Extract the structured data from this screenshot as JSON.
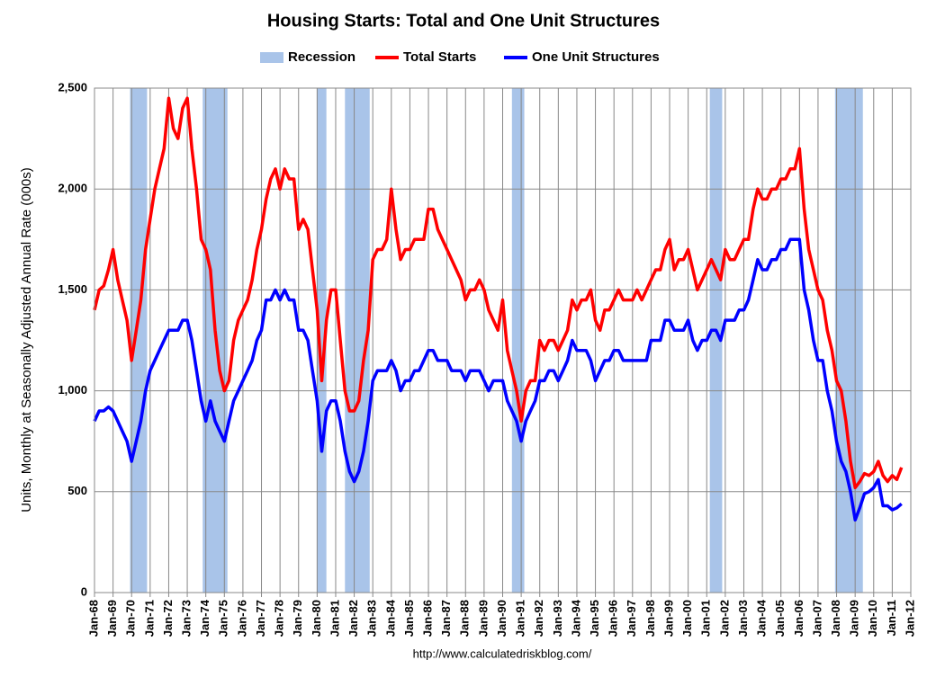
{
  "chart_data": {
    "type": "line",
    "title": "Housing Starts: Total and One Unit Structures",
    "y_label": "Units, Monthly at Seasonally Adjusted Annual Rate (000s)",
    "source": "http://www.calculatedriskblog.com/",
    "grid": true,
    "legend": "top",
    "recessions": {
      "name": "Recession",
      "color": "#a9c4e9",
      "ranges": [
        [
          "1969-12",
          "1970-11"
        ],
        [
          "1973-11",
          "1975-03"
        ],
        [
          "1980-01",
          "1980-07"
        ],
        [
          "1981-07",
          "1982-11"
        ],
        [
          "1990-07",
          "1991-03"
        ],
        [
          "2001-03",
          "2001-11"
        ],
        [
          "2007-12",
          "2009-06"
        ]
      ]
    },
    "x": [
      "1968-01",
      "1968-04",
      "1968-07",
      "1968-10",
      "1969-01",
      "1969-04",
      "1969-07",
      "1969-10",
      "1970-01",
      "1970-04",
      "1970-07",
      "1970-10",
      "1971-01",
      "1971-04",
      "1971-07",
      "1971-10",
      "1972-01",
      "1972-04",
      "1972-07",
      "1972-10",
      "1973-01",
      "1973-04",
      "1973-07",
      "1973-10",
      "1974-01",
      "1974-04",
      "1974-07",
      "1974-10",
      "1975-01",
      "1975-04",
      "1975-07",
      "1975-10",
      "1976-01",
      "1976-04",
      "1976-07",
      "1976-10",
      "1977-01",
      "1977-04",
      "1977-07",
      "1977-10",
      "1978-01",
      "1978-04",
      "1978-07",
      "1978-10",
      "1979-01",
      "1979-04",
      "1979-07",
      "1979-10",
      "1980-01",
      "1980-04",
      "1980-07",
      "1980-10",
      "1981-01",
      "1981-04",
      "1981-07",
      "1981-10",
      "1982-01",
      "1982-04",
      "1982-07",
      "1982-10",
      "1983-01",
      "1983-04",
      "1983-07",
      "1983-10",
      "1984-01",
      "1984-04",
      "1984-07",
      "1984-10",
      "1985-01",
      "1985-04",
      "1985-07",
      "1985-10",
      "1986-01",
      "1986-04",
      "1986-07",
      "1986-10",
      "1987-01",
      "1987-04",
      "1987-07",
      "1987-10",
      "1988-01",
      "1988-04",
      "1988-07",
      "1988-10",
      "1989-01",
      "1989-04",
      "1989-07",
      "1989-10",
      "1990-01",
      "1990-04",
      "1990-07",
      "1990-10",
      "1991-01",
      "1991-04",
      "1991-07",
      "1991-10",
      "1992-01",
      "1992-04",
      "1992-07",
      "1992-10",
      "1993-01",
      "1993-04",
      "1993-07",
      "1993-10",
      "1994-01",
      "1994-04",
      "1994-07",
      "1994-10",
      "1995-01",
      "1995-04",
      "1995-07",
      "1995-10",
      "1996-01",
      "1996-04",
      "1996-07",
      "1996-10",
      "1997-01",
      "1997-04",
      "1997-07",
      "1997-10",
      "1998-01",
      "1998-04",
      "1998-07",
      "1998-10",
      "1999-01",
      "1999-04",
      "1999-07",
      "1999-10",
      "2000-01",
      "2000-04",
      "2000-07",
      "2000-10",
      "2001-01",
      "2001-04",
      "2001-07",
      "2001-10",
      "2002-01",
      "2002-04",
      "2002-07",
      "2002-10",
      "2003-01",
      "2003-04",
      "2003-07",
      "2003-10",
      "2004-01",
      "2004-04",
      "2004-07",
      "2004-10",
      "2005-01",
      "2005-04",
      "2005-07",
      "2005-10",
      "2006-01",
      "2006-04",
      "2006-07",
      "2006-10",
      "2007-01",
      "2007-04",
      "2007-07",
      "2007-10",
      "2008-01",
      "2008-04",
      "2008-07",
      "2008-10",
      "2009-01",
      "2009-04",
      "2009-07",
      "2009-10",
      "2010-01",
      "2010-04",
      "2010-07",
      "2010-10",
      "2011-01",
      "2011-04",
      "2011-07"
    ],
    "series": [
      {
        "name": "Total Starts",
        "color": "#ff0000",
        "values": [
          1400,
          1500,
          1520,
          1600,
          1700,
          1550,
          1450,
          1350,
          1150,
          1300,
          1450,
          1700,
          1850,
          2000,
          2100,
          2200,
          2450,
          2300,
          2250,
          2400,
          2450,
          2200,
          2000,
          1750,
          1700,
          1600,
          1300,
          1100,
          1000,
          1050,
          1250,
          1350,
          1400,
          1450,
          1550,
          1700,
          1800,
          1950,
          2050,
          2100,
          2000,
          2100,
          2050,
          2050,
          1800,
          1850,
          1800,
          1600,
          1400,
          1050,
          1350,
          1500,
          1500,
          1250,
          1000,
          900,
          900,
          950,
          1150,
          1300,
          1650,
          1700,
          1700,
          1750,
          2000,
          1800,
          1650,
          1700,
          1700,
          1750,
          1750,
          1750,
          1900,
          1900,
          1800,
          1750,
          1700,
          1650,
          1600,
          1550,
          1450,
          1500,
          1500,
          1550,
          1500,
          1400,
          1350,
          1300,
          1450,
          1200,
          1100,
          1000,
          850,
          1000,
          1050,
          1050,
          1250,
          1200,
          1250,
          1250,
          1200,
          1250,
          1300,
          1450,
          1400,
          1450,
          1450,
          1500,
          1350,
          1300,
          1400,
          1400,
          1450,
          1500,
          1450,
          1450,
          1450,
          1500,
          1450,
          1500,
          1550,
          1600,
          1600,
          1700,
          1750,
          1600,
          1650,
          1650,
          1700,
          1600,
          1500,
          1550,
          1600,
          1650,
          1600,
          1550,
          1700,
          1650,
          1650,
          1700,
          1750,
          1750,
          1900,
          2000,
          1950,
          1950,
          2000,
          2000,
          2050,
          2050,
          2100,
          2100,
          2200,
          1900,
          1700,
          1600,
          1500,
          1450,
          1300,
          1200,
          1050,
          1000,
          850,
          650,
          520,
          550,
          590,
          580,
          600,
          650,
          580,
          550,
          580,
          560,
          620
        ]
      },
      {
        "name": "One Unit Structures",
        "color": "#0000ff",
        "values": [
          850,
          900,
          900,
          920,
          900,
          850,
          800,
          750,
          650,
          750,
          850,
          1000,
          1100,
          1150,
          1200,
          1250,
          1300,
          1300,
          1300,
          1350,
          1350,
          1250,
          1100,
          950,
          850,
          950,
          850,
          800,
          750,
          850,
          950,
          1000,
          1050,
          1100,
          1150,
          1250,
          1300,
          1450,
          1450,
          1500,
          1450,
          1500,
          1450,
          1450,
          1300,
          1300,
          1250,
          1100,
          950,
          700,
          900,
          950,
          950,
          850,
          700,
          600,
          550,
          600,
          700,
          850,
          1050,
          1100,
          1100,
          1100,
          1150,
          1100,
          1000,
          1050,
          1050,
          1100,
          1100,
          1150,
          1200,
          1200,
          1150,
          1150,
          1150,
          1100,
          1100,
          1100,
          1050,
          1100,
          1100,
          1100,
          1050,
          1000,
          1050,
          1050,
          1050,
          950,
          900,
          850,
          750,
          850,
          900,
          950,
          1050,
          1050,
          1100,
          1100,
          1050,
          1100,
          1150,
          1250,
          1200,
          1200,
          1200,
          1150,
          1050,
          1100,
          1150,
          1150,
          1200,
          1200,
          1150,
          1150,
          1150,
          1150,
          1150,
          1150,
          1250,
          1250,
          1250,
          1350,
          1350,
          1300,
          1300,
          1300,
          1350,
          1250,
          1200,
          1250,
          1250,
          1300,
          1300,
          1250,
          1350,
          1350,
          1350,
          1400,
          1400,
          1450,
          1550,
          1650,
          1600,
          1600,
          1650,
          1650,
          1700,
          1700,
          1750,
          1750,
          1750,
          1500,
          1400,
          1250,
          1150,
          1150,
          1000,
          900,
          750,
          650,
          600,
          500,
          360,
          420,
          490,
          500,
          520,
          560,
          430,
          430,
          410,
          420,
          440
        ]
      }
    ],
    "xlim": [
      "1968-01",
      "2012-01"
    ],
    "xticks": [
      {
        "value": "1968-01",
        "label": "Jan-68"
      },
      {
        "value": "1969-01",
        "label": "Jan-69"
      },
      {
        "value": "1970-01",
        "label": "Jan-70"
      },
      {
        "value": "1971-01",
        "label": "Jan-71"
      },
      {
        "value": "1972-01",
        "label": "Jan-72"
      },
      {
        "value": "1973-01",
        "label": "Jan-73"
      },
      {
        "value": "1974-01",
        "label": "Jan-74"
      },
      {
        "value": "1975-01",
        "label": "Jan-75"
      },
      {
        "value": "1976-01",
        "label": "Jan-76"
      },
      {
        "value": "1977-01",
        "label": "Jan-77"
      },
      {
        "value": "1978-01",
        "label": "Jan-78"
      },
      {
        "value": "1979-01",
        "label": "Jan-79"
      },
      {
        "value": "1980-01",
        "label": "Jan-80"
      },
      {
        "value": "1981-01",
        "label": "Jan-81"
      },
      {
        "value": "1982-01",
        "label": "Jan-82"
      },
      {
        "value": "1983-01",
        "label": "Jan-83"
      },
      {
        "value": "1984-01",
        "label": "Jan-84"
      },
      {
        "value": "1985-01",
        "label": "Jan-85"
      },
      {
        "value": "1986-01",
        "label": "Jan-86"
      },
      {
        "value": "1987-01",
        "label": "Jan-87"
      },
      {
        "value": "1988-01",
        "label": "Jan-88"
      },
      {
        "value": "1989-01",
        "label": "Jan-89"
      },
      {
        "value": "1990-01",
        "label": "Jan-90"
      },
      {
        "value": "1991-01",
        "label": "Jan-91"
      },
      {
        "value": "1992-01",
        "label": "Jan-92"
      },
      {
        "value": "1993-01",
        "label": "Jan-93"
      },
      {
        "value": "1994-01",
        "label": "Jan-94"
      },
      {
        "value": "1995-01",
        "label": "Jan-95"
      },
      {
        "value": "1996-01",
        "label": "Jan-96"
      },
      {
        "value": "1997-01",
        "label": "Jan-97"
      },
      {
        "value": "1998-01",
        "label": "Jan-98"
      },
      {
        "value": "1999-01",
        "label": "Jan-99"
      },
      {
        "value": "2000-01",
        "label": "Jan-00"
      },
      {
        "value": "2001-01",
        "label": "Jan-01"
      },
      {
        "value": "2002-01",
        "label": "Jan-02"
      },
      {
        "value": "2003-01",
        "label": "Jan-03"
      },
      {
        "value": "2004-01",
        "label": "Jan-04"
      },
      {
        "value": "2005-01",
        "label": "Jan-05"
      },
      {
        "value": "2006-01",
        "label": "Jan-06"
      },
      {
        "value": "2007-01",
        "label": "Jan-07"
      },
      {
        "value": "2008-01",
        "label": "Jan-08"
      },
      {
        "value": "2009-01",
        "label": "Jan-09"
      },
      {
        "value": "2010-01",
        "label": "Jan-10"
      },
      {
        "value": "2011-01",
        "label": "Jan-11"
      },
      {
        "value": "2012-01",
        "label": "Jan-12"
      }
    ],
    "ylim": [
      0,
      2500
    ],
    "yticks": [
      0,
      500,
      {
        "value": 1000,
        "label": "1,000"
      },
      {
        "value": 1500,
        "label": "1,500"
      },
      {
        "value": 2000,
        "label": "2,000"
      },
      {
        "value": 2500,
        "label": "2,500"
      }
    ]
  }
}
